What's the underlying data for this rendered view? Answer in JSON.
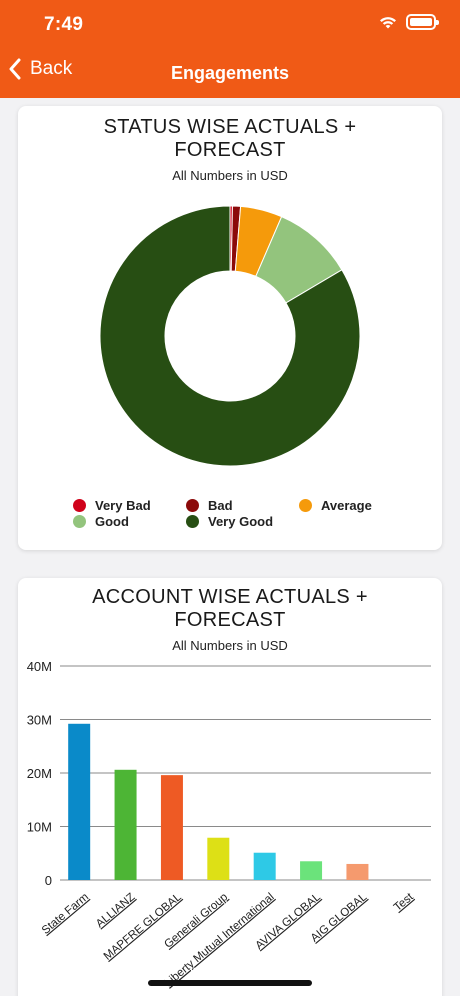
{
  "status_bar": {
    "time": "7:49"
  },
  "nav": {
    "back_label": "Back",
    "title": "Engagements"
  },
  "status_card": {
    "title": "STATUS WISE ACTUALS + FORECAST",
    "subtitle": "All Numbers in USD",
    "legend": [
      {
        "label": "Very Bad",
        "color": "#d0021b"
      },
      {
        "label": "Bad",
        "color": "#8b0a0a"
      },
      {
        "label": "Average",
        "color": "#f59a0b"
      },
      {
        "label": "Good",
        "color": "#93c47d"
      },
      {
        "label": "Very Good",
        "color": "#274e13"
      }
    ]
  },
  "account_card": {
    "title": "ACCOUNT WISE ACTUALS + FORECAST",
    "subtitle": "All Numbers in USD"
  },
  "chart_data": [
    {
      "type": "pie",
      "donut": true,
      "title": "STATUS WISE ACTUALS + FORECAST",
      "subtitle": "All Numbers in USD",
      "legend_placement": "bottom",
      "categories": [
        "Very Bad",
        "Bad",
        "Average",
        "Good",
        "Very Good"
      ],
      "values": [
        0.3,
        1.0,
        5.2,
        10.0,
        83.5
      ],
      "colors": [
        "#d0021b",
        "#8b0a0a",
        "#f59a0b",
        "#93c47d",
        "#274e13"
      ]
    },
    {
      "type": "bar",
      "title": "ACCOUNT WISE ACTUALS + FORECAST",
      "subtitle": "All Numbers in USD",
      "categories": [
        "State Farm",
        "ALLIANZ",
        "MAPFRE GLOBAL",
        "Generali Group",
        "Liberty Mutual International",
        "AVIVA GLOBAL",
        "AIG GLOBAL",
        "Test"
      ],
      "values": [
        29.2,
        20.6,
        19.6,
        7.9,
        5.1,
        3.5,
        3.0,
        0
      ],
      "colors": [
        "#0a8ac9",
        "#4db535",
        "#ee5a24",
        "#dde016",
        "#2ec9e6",
        "#6be37b",
        "#f59a6e",
        "#cccccc"
      ],
      "yticks": [
        "0",
        "10M",
        "20M",
        "30M",
        "40M"
      ],
      "ylim": [
        0,
        40
      ],
      "grid": true
    }
  ]
}
